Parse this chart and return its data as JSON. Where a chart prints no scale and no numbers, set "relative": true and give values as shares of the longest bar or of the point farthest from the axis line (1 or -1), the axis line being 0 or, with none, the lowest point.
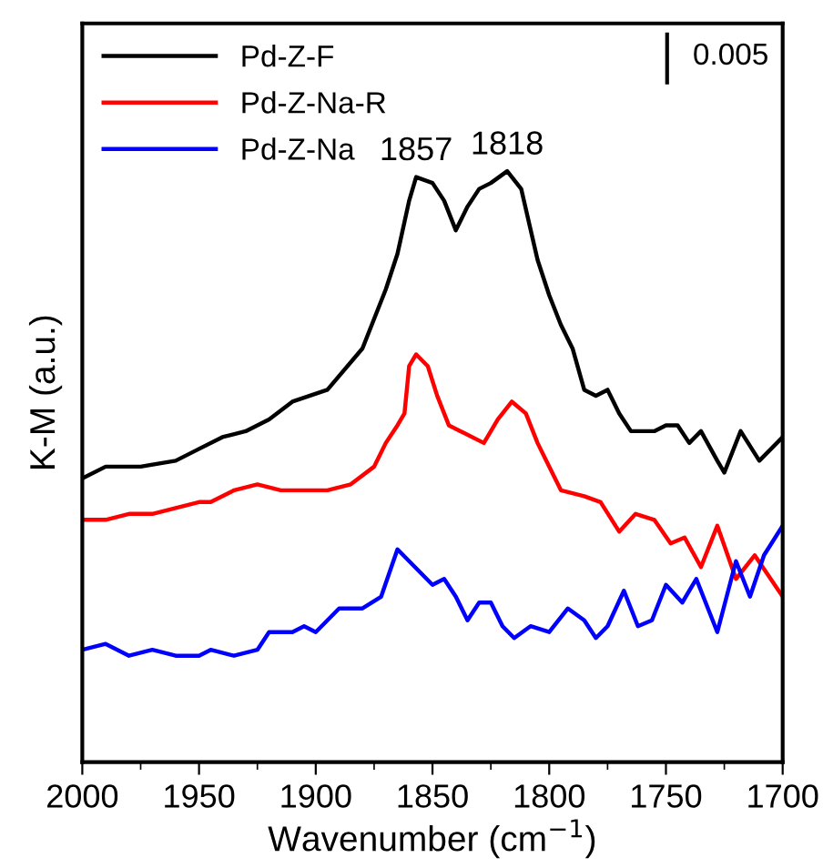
{
  "chart_data": {
    "type": "line",
    "xlabel": "Wavenumber (cm$^{−1}$)",
    "ylabel": "K-M (a.u.)",
    "relative": true,
    "xlim": [
      2000,
      1700
    ],
    "xticks": [
      2000,
      1950,
      1900,
      1850,
      1800,
      1750,
      1700
    ],
    "tick_labels": "x",
    "legend": "top left",
    "grid": false,
    "series": [
      {
        "name": "Pd-Z-F",
        "color": "#000000",
        "x": [
          2000,
          1990,
          1975,
          1960,
          1950,
          1940,
          1930,
          1920,
          1910,
          1895,
          1880,
          1870,
          1865,
          1860,
          1857,
          1850,
          1845,
          1840,
          1835,
          1830,
          1825,
          1818,
          1812,
          1805,
          1800,
          1795,
          1790,
          1785,
          1780,
          1775,
          1770,
          1765,
          1760,
          1755,
          1750,
          1745,
          1740,
          1735,
          1728,
          1725,
          1718,
          1710,
          1700
        ],
        "values": [
          0.48,
          0.5,
          0.5,
          0.51,
          0.53,
          0.55,
          0.56,
          0.58,
          0.61,
          0.63,
          0.7,
          0.8,
          0.86,
          0.95,
          0.99,
          0.98,
          0.95,
          0.9,
          0.94,
          0.97,
          0.98,
          1.0,
          0.97,
          0.85,
          0.79,
          0.74,
          0.7,
          0.63,
          0.62,
          0.63,
          0.59,
          0.56,
          0.56,
          0.56,
          0.57,
          0.57,
          0.54,
          0.56,
          0.51,
          0.49,
          0.56,
          0.51,
          0.55
        ]
      },
      {
        "name": "Pd-Z-Na-R",
        "color": "#ff0000",
        "x": [
          2000,
          1990,
          1980,
          1970,
          1960,
          1950,
          1945,
          1935,
          1925,
          1915,
          1905,
          1895,
          1885,
          1875,
          1870,
          1865,
          1862,
          1860,
          1857,
          1852,
          1848,
          1843,
          1838,
          1828,
          1822,
          1816,
          1810,
          1805,
          1795,
          1785,
          1778,
          1770,
          1763,
          1755,
          1748,
          1742,
          1735,
          1728,
          1720,
          1712,
          1700
        ],
        "values": [
          0.41,
          0.41,
          0.42,
          0.42,
          0.43,
          0.44,
          0.44,
          0.46,
          0.47,
          0.46,
          0.46,
          0.46,
          0.47,
          0.5,
          0.54,
          0.57,
          0.59,
          0.67,
          0.69,
          0.67,
          0.62,
          0.57,
          0.56,
          0.54,
          0.58,
          0.61,
          0.59,
          0.54,
          0.46,
          0.45,
          0.44,
          0.39,
          0.42,
          0.41,
          0.37,
          0.38,
          0.33,
          0.4,
          0.31,
          0.35,
          0.28
        ]
      },
      {
        "name": "Pd-Z-Na",
        "color": "#0000ff",
        "x": [
          2000,
          1990,
          1980,
          1970,
          1960,
          1950,
          1945,
          1935,
          1925,
          1920,
          1910,
          1905,
          1900,
          1890,
          1880,
          1872,
          1865,
          1860,
          1855,
          1850,
          1845,
          1840,
          1835,
          1830,
          1825,
          1820,
          1815,
          1808,
          1800,
          1792,
          1785,
          1780,
          1775,
          1768,
          1762,
          1756,
          1750,
          1743,
          1737,
          1728,
          1720,
          1714,
          1708,
          1700
        ],
        "values": [
          0.19,
          0.2,
          0.18,
          0.19,
          0.18,
          0.18,
          0.19,
          0.18,
          0.19,
          0.22,
          0.22,
          0.23,
          0.22,
          0.26,
          0.26,
          0.28,
          0.36,
          0.34,
          0.32,
          0.3,
          0.31,
          0.28,
          0.24,
          0.27,
          0.27,
          0.23,
          0.21,
          0.23,
          0.22,
          0.26,
          0.24,
          0.21,
          0.23,
          0.29,
          0.23,
          0.24,
          0.3,
          0.27,
          0.31,
          0.22,
          0.34,
          0.28,
          0.35,
          0.4
        ]
      }
    ],
    "annotations": [
      {
        "text": "1857",
        "x": 1857,
        "y": 0.99
      },
      {
        "text": "1818",
        "x": 1818,
        "y": 1.0
      },
      "0.005"
    ]
  }
}
